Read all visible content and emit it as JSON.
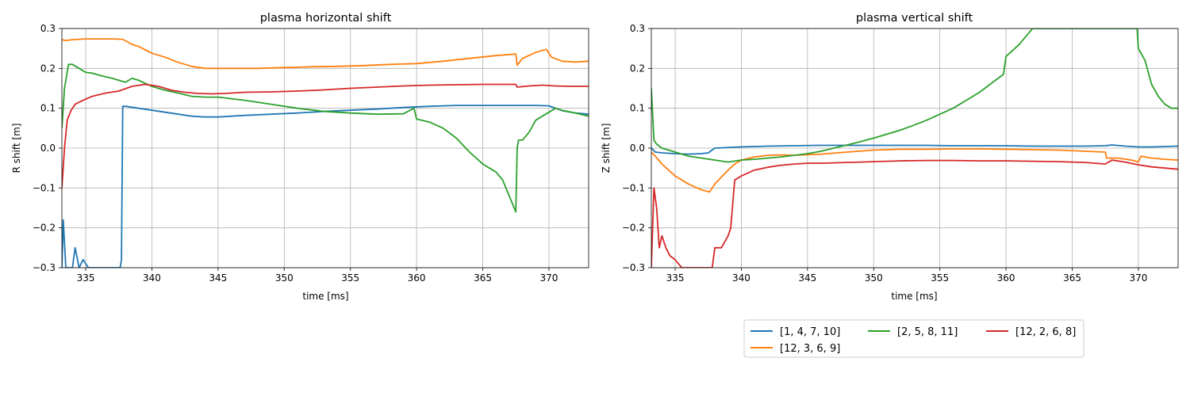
{
  "legend": {
    "placement": "bottom-right, below plots",
    "entries": [
      "[1, 4, 7, 10]",
      "[12, 3, 6, 9]",
      "[2, 5, 8, 11]",
      "[12, 2, 6, 8]"
    ]
  },
  "chart_data": [
    {
      "type": "line",
      "title": "plasma horizontal shift",
      "xlabel": "time [ms]",
      "ylabel": "R shift [m]",
      "xlim": [
        333.2,
        373.0
      ],
      "ylim": [
        -0.3,
        0.3
      ],
      "xticks": [
        335,
        340,
        345,
        350,
        355,
        360,
        365,
        370
      ],
      "yticks": [
        -0.3,
        -0.2,
        -0.1,
        0.0,
        0.1,
        0.2,
        0.3
      ],
      "grid": true,
      "series": [
        {
          "name": "[1, 4, 7, 10]",
          "color": "#1f77b4",
          "x": [
            333.2,
            333.3,
            333.5,
            333.7,
            334.0,
            334.2,
            334.5,
            334.8,
            335.2,
            335.5,
            336,
            337,
            337.6,
            337.7,
            337.8,
            338,
            339,
            340,
            341,
            342,
            343,
            344,
            345,
            347,
            349,
            351,
            353,
            355,
            357,
            359,
            361,
            363,
            365,
            367,
            369,
            370,
            371,
            372,
            373
          ],
          "y": [
            -0.3,
            -0.18,
            -0.3,
            -0.3,
            -0.3,
            -0.25,
            -0.3,
            -0.28,
            -0.3,
            -0.3,
            -0.3,
            -0.3,
            -0.3,
            -0.28,
            0.105,
            0.105,
            0.1,
            0.095,
            0.09,
            0.085,
            0.08,
            0.078,
            0.078,
            0.082,
            0.085,
            0.088,
            0.092,
            0.095,
            0.098,
            0.102,
            0.105,
            0.107,
            0.107,
            0.107,
            0.107,
            0.106,
            0.094,
            0.088,
            0.085
          ]
        },
        {
          "name": "[12, 3, 6, 9]",
          "color": "#ff7f0e",
          "x": [
            333.2,
            333.5,
            334,
            335,
            336,
            337,
            337.8,
            338.5,
            339,
            340,
            341,
            342,
            343,
            344,
            345,
            346,
            348,
            350,
            352,
            354,
            356,
            358,
            360,
            362,
            364,
            366,
            367.5,
            367.6,
            368,
            369,
            369.8,
            370.2,
            371,
            372,
            373
          ],
          "y": [
            0.272,
            0.27,
            0.272,
            0.274,
            0.274,
            0.274,
            0.273,
            0.26,
            0.255,
            0.238,
            0.228,
            0.215,
            0.205,
            0.2,
            0.2,
            0.2,
            0.2,
            0.202,
            0.204,
            0.205,
            0.207,
            0.21,
            0.212,
            0.218,
            0.225,
            0.232,
            0.236,
            0.208,
            0.225,
            0.24,
            0.248,
            0.228,
            0.218,
            0.216,
            0.218
          ]
        },
        {
          "name": "[2, 5, 8, 11]",
          "color": "#2ca02c",
          "x": [
            333.2,
            333.4,
            333.7,
            334,
            334.5,
            335,
            335.5,
            336,
            337,
            338,
            338.5,
            339,
            340,
            341,
            342,
            343,
            344,
            345,
            347,
            349,
            351,
            353,
            355,
            357,
            359,
            359.8,
            360,
            361,
            362,
            363,
            364,
            365,
            366,
            366.5,
            367,
            367.5,
            367.6,
            367.7,
            368,
            368.5,
            369,
            369.5,
            370,
            370.5,
            371,
            372,
            373
          ],
          "y": [
            0.05,
            0.15,
            0.21,
            0.21,
            0.2,
            0.19,
            0.188,
            0.183,
            0.175,
            0.165,
            0.175,
            0.17,
            0.155,
            0.145,
            0.138,
            0.13,
            0.128,
            0.128,
            0.12,
            0.11,
            0.1,
            0.092,
            0.088,
            0.085,
            0.086,
            0.1,
            0.073,
            0.065,
            0.05,
            0.025,
            -0.01,
            -0.04,
            -0.06,
            -0.08,
            -0.12,
            -0.16,
            0.0,
            0.02,
            0.02,
            0.04,
            0.07,
            0.08,
            0.09,
            0.1,
            0.095,
            0.088,
            0.08
          ]
        },
        {
          "name": "[12, 2, 6, 8]",
          "color": "#d62728",
          "x": [
            333.2,
            333.4,
            333.6,
            333.9,
            334.2,
            334.8,
            335.5,
            336.5,
            337.5,
            338.5,
            339.5,
            340.5,
            341.5,
            342.5,
            343.5,
            344.5,
            345.5,
            347,
            349,
            351,
            353,
            355,
            357,
            359,
            361,
            363,
            365,
            367.5,
            367.6,
            368.5,
            369.5,
            370.5,
            371.5,
            372.5,
            373
          ],
          "y": [
            -0.1,
            0.0,
            0.07,
            0.095,
            0.11,
            0.12,
            0.13,
            0.138,
            0.143,
            0.155,
            0.16,
            0.155,
            0.145,
            0.14,
            0.137,
            0.136,
            0.137,
            0.14,
            0.141,
            0.143,
            0.146,
            0.15,
            0.153,
            0.156,
            0.158,
            0.159,
            0.16,
            0.16,
            0.153,
            0.156,
            0.158,
            0.156,
            0.155,
            0.155,
            0.155
          ]
        }
      ]
    },
    {
      "type": "line",
      "title": "plasma vertical shift",
      "xlabel": "time [ms]",
      "ylabel": "Z shift [m]",
      "xlim": [
        333.2,
        373.0
      ],
      "ylim": [
        -0.3,
        0.3
      ],
      "xticks": [
        335,
        340,
        345,
        350,
        355,
        360,
        365,
        370
      ],
      "yticks": [
        -0.3,
        -0.2,
        -0.1,
        0.0,
        0.1,
        0.2,
        0.3
      ],
      "grid": true,
      "series": [
        {
          "name": "[1, 4, 7, 10]",
          "color": "#1f77b4",
          "x": [
            333.2,
            333.5,
            334,
            335,
            336,
            337,
            337.5,
            338,
            340,
            342,
            344,
            346,
            348,
            350,
            352,
            354,
            356,
            358,
            360,
            362,
            364,
            366,
            367.5,
            368,
            369,
            370,
            371,
            372,
            373
          ],
          "y": [
            0.0,
            -0.01,
            -0.012,
            -0.014,
            -0.015,
            -0.014,
            -0.012,
            0.0,
            0.003,
            0.005,
            0.006,
            0.007,
            0.007,
            0.007,
            0.007,
            0.007,
            0.006,
            0.006,
            0.006,
            0.005,
            0.005,
            0.005,
            0.006,
            0.008,
            0.005,
            0.003,
            0.003,
            0.004,
            0.005
          ]
        },
        {
          "name": "[12, 3, 6, 9]",
          "color": "#ff7f0e",
          "x": [
            333.2,
            333.5,
            334,
            335,
            336,
            337,
            337.6,
            338,
            339,
            339.5,
            340,
            341,
            342,
            343,
            344,
            346,
            348,
            350,
            352,
            354,
            356,
            358,
            360,
            362,
            364,
            366,
            367.5,
            367.6,
            368.5,
            369.5,
            370,
            370.2,
            371,
            372,
            373
          ],
          "y": [
            -0.01,
            -0.02,
            -0.04,
            -0.07,
            -0.09,
            -0.105,
            -0.11,
            -0.09,
            -0.055,
            -0.04,
            -0.03,
            -0.022,
            -0.018,
            -0.017,
            -0.018,
            -0.015,
            -0.01,
            -0.005,
            -0.003,
            -0.003,
            -0.002,
            -0.002,
            -0.003,
            -0.004,
            -0.005,
            -0.008,
            -0.01,
            -0.025,
            -0.025,
            -0.03,
            -0.035,
            -0.02,
            -0.025,
            -0.028,
            -0.03
          ]
        },
        {
          "name": "[2, 5, 8, 11]",
          "color": "#2ca02c",
          "x": [
            333.2,
            333.4,
            333.6,
            334,
            335,
            336,
            337,
            338,
            339,
            340,
            341,
            342,
            343,
            344,
            345,
            346,
            347,
            348,
            349,
            350,
            351,
            352,
            353,
            354,
            355,
            356,
            357,
            358,
            359,
            359.8,
            360,
            361,
            361.5,
            362,
            362.5,
            369.9,
            370,
            370.5,
            371,
            371.5,
            372,
            372.5,
            373
          ],
          "y": [
            0.15,
            0.02,
            0.01,
            0.0,
            -0.01,
            -0.02,
            -0.025,
            -0.03,
            -0.035,
            -0.03,
            -0.028,
            -0.025,
            -0.022,
            -0.018,
            -0.014,
            -0.008,
            0.0,
            0.008,
            0.016,
            0.025,
            0.035,
            0.045,
            0.057,
            0.07,
            0.085,
            0.1,
            0.12,
            0.14,
            0.165,
            0.185,
            0.23,
            0.26,
            0.28,
            0.3,
            0.3,
            0.3,
            0.25,
            0.22,
            0.16,
            0.13,
            0.11,
            0.1,
            0.1
          ]
        },
        {
          "name": "[12, 2, 6, 8]",
          "color": "#d62728",
          "x": [
            333.2,
            333.4,
            333.6,
            333.8,
            334,
            334.3,
            334.6,
            335,
            335.5,
            336,
            336.5,
            336.8,
            337.5,
            337.8,
            338,
            338.5,
            339,
            339.2,
            339.5,
            340,
            341,
            342,
            343,
            344,
            345,
            346,
            348,
            350,
            352,
            354,
            356,
            358,
            360,
            362,
            364,
            366,
            367.5,
            368,
            369,
            370,
            371,
            372,
            373
          ],
          "y": [
            -0.3,
            -0.1,
            -0.15,
            -0.25,
            -0.22,
            -0.25,
            -0.27,
            -0.28,
            -0.3,
            -0.3,
            -0.3,
            -0.3,
            -0.3,
            -0.3,
            -0.25,
            -0.25,
            -0.22,
            -0.2,
            -0.08,
            -0.07,
            -0.055,
            -0.048,
            -0.043,
            -0.04,
            -0.038,
            -0.038,
            -0.036,
            -0.034,
            -0.032,
            -0.031,
            -0.031,
            -0.032,
            -0.032,
            -0.033,
            -0.034,
            -0.036,
            -0.04,
            -0.03,
            -0.035,
            -0.042,
            -0.047,
            -0.05,
            -0.053
          ]
        }
      ]
    }
  ]
}
